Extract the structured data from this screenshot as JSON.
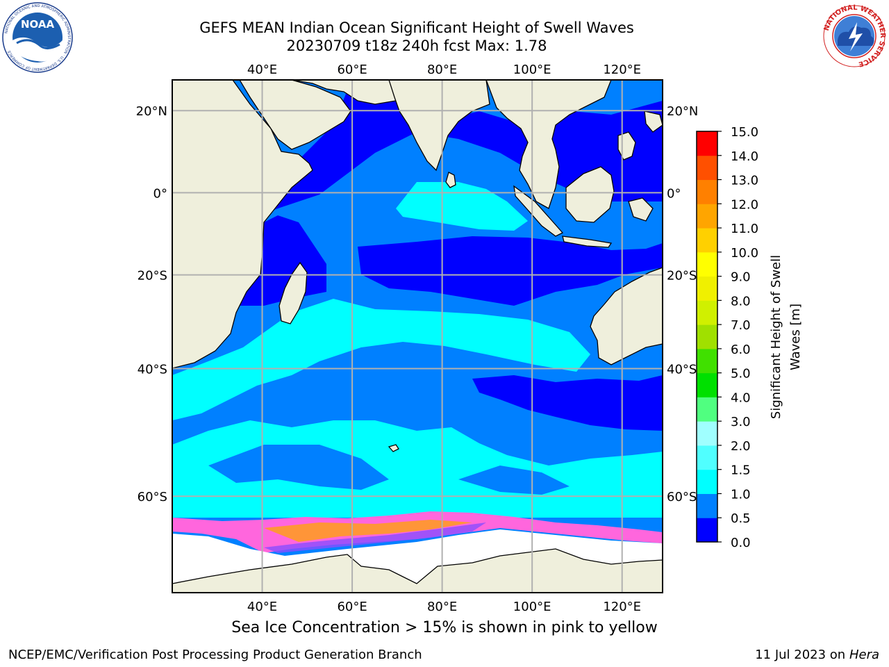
{
  "header": {
    "title_line1": "GEFS MEAN Indian Ocean Significant Height of Swell Waves",
    "title_line2": "20230709 t18z 240h fcst   Max: 1.78"
  },
  "logos": {
    "left": {
      "icon": "noaa-logo-icon",
      "text": "NOAA",
      "ring_text": "NATIONAL OCEANIC AND ATMOSPHERIC ADMINISTRATION · U.S. DEPARTMENT OF COMMERCE"
    },
    "right": {
      "icon": "nws-logo-icon",
      "ring_text": "NATIONAL WEATHER SERVICE"
    }
  },
  "map": {
    "lon_ticks": [
      "40°E",
      "60°E",
      "80°E",
      "100°E",
      "120°E"
    ],
    "lat_ticks": [
      "20°N",
      "0°",
      "20°S",
      "40°S",
      "60°S"
    ],
    "lon_range": [
      20,
      129
    ],
    "lat_range": [
      -70,
      27
    ],
    "grid": true,
    "colors": {
      "land": "#efefdc",
      "sea_ice": "#ffffff",
      "grid": "#b0b0b0"
    }
  },
  "colorbar": {
    "label": "Significant Height of Swell Waves [m]",
    "label_line1": "Significant Height of Swell",
    "label_line2": "Waves [m]",
    "ticks": [
      "15.0",
      "14.0",
      "13.0",
      "12.0",
      "11.0",
      "10.0",
      "9.0",
      "8.0",
      "7.0",
      "6.0",
      "5.0",
      "4.0",
      "3.0",
      "2.0",
      "1.5",
      "1.0",
      "0.5",
      "0.0"
    ],
    "colors": [
      "#0000ff",
      "#0080ff",
      "#00ffff",
      "#50ffff",
      "#a0ffff",
      "#50ff80",
      "#00e000",
      "#40e000",
      "#a0e000",
      "#d0f000",
      "#f0f000",
      "#ffff00",
      "#ffd000",
      "#ffa500",
      "#ff8000",
      "#ff5000",
      "#ff0000"
    ]
  },
  "note": "Sea Ice Concentration > 15% is shown in pink to yellow",
  "footer": {
    "left": "NCEP/EMC/Verification Post Processing Product Generation Branch",
    "right_prefix": "11 Jul 2023 on ",
    "right_machine": "Hera"
  }
}
